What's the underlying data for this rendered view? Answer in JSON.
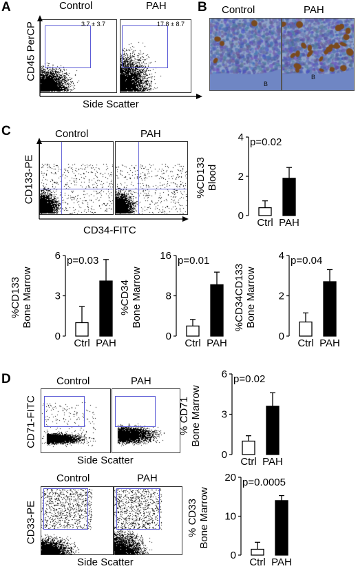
{
  "panels": {
    "A": "A",
    "B": "B",
    "C": "C",
    "D": "D"
  },
  "panelA": {
    "ylabel": "CD45 PerCP",
    "xlabel": "Side Scatter",
    "control": {
      "title": "Control",
      "value": "3.7 ± 3.7"
    },
    "pah": {
      "title": "PAH",
      "value": "17.8 ± 8.7"
    }
  },
  "panelB": {
    "control": {
      "title": "Control",
      "marker": "B"
    },
    "pah": {
      "title": "PAH",
      "marker": "B"
    }
  },
  "panelC": {
    "ylabel": "CD133-PE",
    "xlabel": "CD34-FITC",
    "control_title": "Control",
    "pah_title": "PAH"
  },
  "panelD": {
    "top": {
      "ylabel": "CD71-FITC",
      "xlabel": "Side Scatter",
      "control_title": "Control",
      "pah_title": "PAH"
    },
    "bottom": {
      "ylabel": "CD33-PE",
      "xlabel": "Side Scatter",
      "control_title": "Control",
      "pah_title": "PAH"
    }
  },
  "colors": {
    "gate": "#5b5bd6",
    "control_bar": "#ffffff",
    "pah_bar": "#000000",
    "ihc_bg": "#8fa3c9",
    "ihc_stain": "#7a4a1e"
  },
  "chart_data": [
    {
      "id": "C-blood-cd133",
      "type": "bar",
      "categories": [
        "Ctrl",
        "PAH"
      ],
      "values": [
        0.4,
        1.9
      ],
      "errors": [
        0.35,
        0.55
      ],
      "ylabel_lines": [
        "%CD133",
        "Blood"
      ],
      "ylim": [
        0,
        4
      ],
      "yticks": [
        "0",
        "2",
        "4"
      ],
      "annotation": "p=0.02"
    },
    {
      "id": "C-bm-cd133",
      "type": "bar",
      "categories": [
        "Ctrl",
        "PAH"
      ],
      "values": [
        1.0,
        4.1
      ],
      "errors": [
        1.2,
        1.6
      ],
      "ylabel_lines": [
        "%CD133",
        "Bone Marrow"
      ],
      "ylim": [
        0,
        6
      ],
      "yticks": [
        "0",
        "3",
        "6"
      ],
      "annotation": "p=0.03"
    },
    {
      "id": "C-bm-cd34",
      "type": "bar",
      "categories": [
        "Ctrl",
        "PAH"
      ],
      "values": [
        2.0,
        10.2
      ],
      "errors": [
        1.3,
        2.5
      ],
      "ylabel_lines": [
        "%CD34",
        "Bone Marrow"
      ],
      "ylim": [
        0,
        16
      ],
      "yticks": [
        "0",
        "8",
        "16"
      ],
      "annotation": "p=0.01"
    },
    {
      "id": "C-bm-cd34cd133",
      "type": "bar",
      "categories": [
        "Ctrl",
        "PAH"
      ],
      "values": [
        0.7,
        2.7
      ],
      "errors": [
        0.45,
        0.6
      ],
      "ylabel_lines": [
        "%CD34CD133",
        "Bone Marrow"
      ],
      "ylim": [
        0,
        4
      ],
      "yticks": [
        "0",
        "2",
        "4"
      ],
      "annotation": "p=0.04"
    },
    {
      "id": "D-bm-cd71",
      "type": "bar",
      "categories": [
        "Ctrl",
        "PAH"
      ],
      "values": [
        1.0,
        3.6
      ],
      "errors": [
        0.4,
        1.0
      ],
      "ylabel_lines": [
        "% CD71",
        "Bone Marrow"
      ],
      "ylim": [
        0,
        6
      ],
      "yticks": [
        "0",
        "3",
        "6"
      ],
      "annotation": "p=0.02"
    },
    {
      "id": "D-bm-cd33",
      "type": "bar",
      "categories": [
        "Ctrl",
        "PAH"
      ],
      "values": [
        1.5,
        14.0
      ],
      "errors": [
        1.8,
        1.3
      ],
      "ylabel_lines": [
        "% CD33",
        "Bone Marrow"
      ],
      "ylim": [
        0,
        20
      ],
      "yticks": [
        "0",
        "10",
        "20"
      ],
      "annotation": "p=0.0005"
    }
  ]
}
